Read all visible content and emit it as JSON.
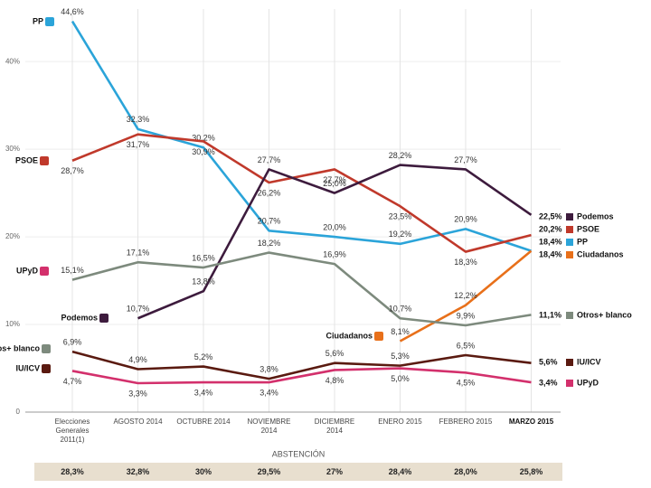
{
  "chart_data": {
    "type": "line",
    "categories": [
      "Elecciones Generales 2011(1)",
      "AGOSTO 2014",
      "OCTUBRE 2014",
      "NOVIEMBRE 2014",
      "DICIEMBRE 2014",
      "ENERO 2015",
      "FEBRERO 2015",
      "MARZO 2015"
    ],
    "ylim": [
      0,
      46
    ],
    "yticks": [
      0,
      {
        "value": 10,
        "label": "10%"
      },
      {
        "value": 20,
        "label": "20%"
      },
      {
        "value": 30,
        "label": "30%"
      },
      {
        "value": 40,
        "label": "40%"
      }
    ],
    "grid": true,
    "series": [
      {
        "name": "PP",
        "color": "#2ba4d9",
        "values": [
          44.6,
          32.3,
          30.2,
          20.7,
          20.0,
          19.2,
          20.9,
          18.4
        ],
        "value_labels": [
          "44,6%",
          "32,3%",
          "30,2%",
          "20,7%",
          "20,0%",
          "19,2%",
          "20,9%",
          "18,4%"
        ]
      },
      {
        "name": "PSOE",
        "color": "#c0392b",
        "values": [
          28.7,
          31.7,
          30.9,
          26.2,
          27.7,
          23.5,
          18.3,
          20.2
        ],
        "value_labels": [
          "28,7%",
          "31,7%",
          "30,9%",
          "26,2%",
          "27,7%",
          "23,5%",
          "18,3%",
          "20,2%"
        ]
      },
      {
        "name": "Podemos",
        "color": "#3d1b3d",
        "values": [
          null,
          10.7,
          13.8,
          27.7,
          25.0,
          28.2,
          27.7,
          22.5
        ],
        "value_labels": [
          null,
          "10,7%",
          "13,8%",
          "27,7%",
          "25,0%",
          "28,2%",
          "27,7%",
          "22,5%"
        ]
      },
      {
        "name": "Ciudadanos",
        "color": "#e8701a",
        "values": [
          null,
          null,
          null,
          null,
          null,
          8.1,
          12.2,
          18.4
        ],
        "value_labels": [
          null,
          null,
          null,
          null,
          null,
          "8,1%",
          "12,2%",
          "18,4%"
        ]
      },
      {
        "name": "Otros+ blanco",
        "color": "#7d8a7d",
        "values": [
          15.1,
          17.1,
          16.5,
          18.2,
          16.9,
          10.7,
          9.9,
          11.1
        ],
        "value_labels": [
          "15,1%",
          "17,1%",
          "16,5%",
          "18,2%",
          "16,9%",
          "10,7%",
          "9,9%",
          "11,1%"
        ]
      },
      {
        "name": "IU/ICV",
        "color": "#5a1a10",
        "values": [
          6.9,
          4.9,
          5.2,
          3.8,
          5.6,
          5.3,
          6.5,
          5.6
        ],
        "value_labels": [
          "6,9%",
          "4,9%",
          "5,2%",
          "3,8%",
          "5,6%",
          "5,3%",
          "6,5%",
          "5,6%"
        ]
      },
      {
        "name": "UPyD",
        "color": "#d3306c",
        "values": [
          4.7,
          3.3,
          3.4,
          3.4,
          4.8,
          5.0,
          4.5,
          3.4
        ],
        "value_labels": [
          "4,7%",
          "3,3%",
          "3,4%",
          "3,4%",
          "4,8%",
          "5,0%",
          "4,5%",
          "3,4%"
        ]
      }
    ],
    "abstention": {
      "title": "ABSTENCIÓN",
      "values": [
        "28,3%",
        "32,8%",
        "30%",
        "29,5%",
        "27%",
        "28,4%",
        "28,0%",
        "25,8%"
      ]
    }
  }
}
